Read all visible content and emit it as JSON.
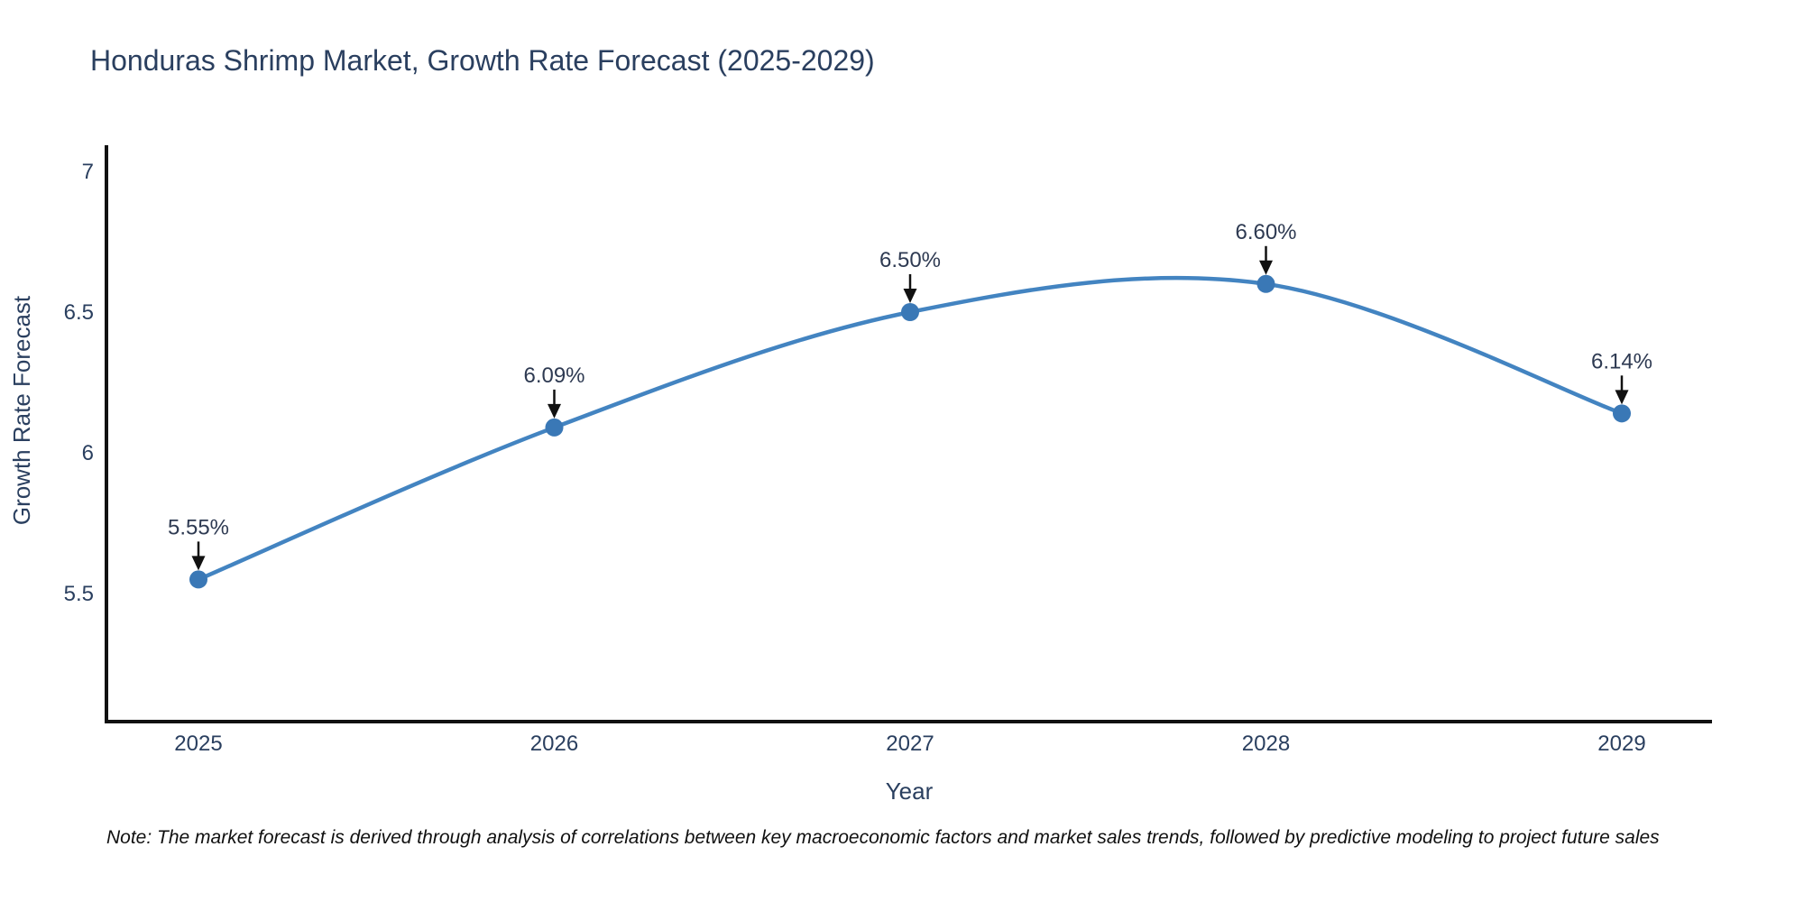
{
  "title": "Honduras Shrimp Market, Growth Rate Forecast (2025-2029)",
  "note": "Note: The market forecast is derived through analysis of correlations between key macroeconomic factors and market sales trends, followed by predictive modeling to project future sales",
  "chart_data": {
    "type": "line",
    "title": "Honduras Shrimp Market, Growth Rate Forecast (2025-2029)",
    "xlabel": "Year",
    "ylabel": "Growth Rate Forecast",
    "x": [
      2025,
      2026,
      2027,
      2028,
      2029
    ],
    "series": [
      {
        "name": "Growth Rate Forecast",
        "values": [
          5.55,
          6.09,
          6.5,
          6.6,
          6.14
        ],
        "point_labels": [
          "5.55%",
          "6.09%",
          "6.50%",
          "6.60%",
          "6.14%"
        ]
      }
    ],
    "x_tick_labels": [
      "2025",
      "2026",
      "2027",
      "2028",
      "2029"
    ],
    "y_ticks": [
      5.5,
      6,
      6.5,
      7
    ],
    "y_tick_labels": [
      "5.5",
      "6",
      "6.5",
      "7"
    ],
    "xlim": [
      2024.74,
      2029.26
    ],
    "ylim": [
      5.04,
      7.09
    ],
    "grid": false,
    "legend": "none",
    "line_shape": "spline",
    "annotations_arrow": true,
    "colors": {
      "line": "#4384c1",
      "marker": "#3a78b6",
      "arrow": "#111111",
      "axis": "#111111",
      "tick_text": "#2a3f5f",
      "annotation_text": "#2e3a52",
      "title_text": "#2a3f5f"
    }
  }
}
